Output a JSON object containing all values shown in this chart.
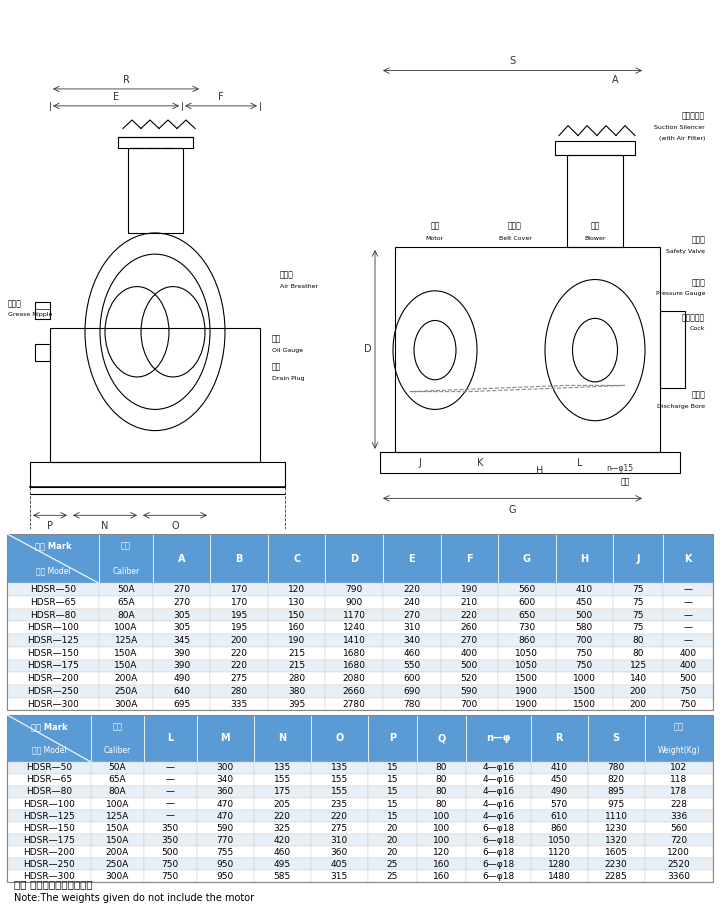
{
  "table1_headers": [
    "记号 Mark\n型式 Model",
    "口径\nCaliber",
    "A",
    "B",
    "C",
    "D",
    "E",
    "F",
    "G",
    "H",
    "J",
    "K"
  ],
  "table1_rows": [
    [
      "HDSR—50",
      "50A",
      "270",
      "170",
      "120",
      "790",
      "220",
      "190",
      "560",
      "410",
      "75",
      "—"
    ],
    [
      "HDSR—65",
      "65A",
      "270",
      "170",
      "130",
      "900",
      "240",
      "210",
      "600",
      "450",
      "75",
      "—"
    ],
    [
      "HDSR—80",
      "80A",
      "305",
      "195",
      "150",
      "1170",
      "270",
      "220",
      "650",
      "500",
      "75",
      "—"
    ],
    [
      "HDSR—100",
      "100A",
      "305",
      "195",
      "160",
      "1240",
      "310",
      "260",
      "730",
      "580",
      "75",
      "—"
    ],
    [
      "HDSR—125",
      "125A",
      "345",
      "200",
      "190",
      "1410",
      "340",
      "270",
      "860",
      "700",
      "80",
      "—"
    ],
    [
      "HDSR—150",
      "150A",
      "390",
      "220",
      "215",
      "1680",
      "460",
      "400",
      "1050",
      "750",
      "80",
      "400"
    ],
    [
      "HDSR—175",
      "150A",
      "390",
      "220",
      "215",
      "1680",
      "550",
      "500",
      "1050",
      "750",
      "125",
      "400"
    ],
    [
      "HDSR—200",
      "200A",
      "490",
      "275",
      "280",
      "2080",
      "600",
      "520",
      "1500",
      "1000",
      "140",
      "500"
    ],
    [
      "HDSR—250",
      "250A",
      "640",
      "280",
      "380",
      "2660",
      "690",
      "590",
      "1900",
      "1500",
      "200",
      "750"
    ],
    [
      "HDSR—300",
      "300A",
      "695",
      "335",
      "395",
      "2780",
      "780",
      "700",
      "1900",
      "1500",
      "200",
      "750"
    ]
  ],
  "table2_headers": [
    "记号 Mark\n型式 Model",
    "口径\nCaliber",
    "L",
    "M",
    "N",
    "O",
    "P",
    "Q",
    "n—φ",
    "R",
    "S",
    "重量\nWeight(Kg)"
  ],
  "table2_rows": [
    [
      "HDSR—50",
      "50A",
      "—",
      "300",
      "135",
      "135",
      "15",
      "80",
      "4—φ16",
      "410",
      "780",
      "102"
    ],
    [
      "HDSR—65",
      "65A",
      "—",
      "340",
      "155",
      "155",
      "15",
      "80",
      "4—φ16",
      "450",
      "820",
      "118"
    ],
    [
      "HDSR—80",
      "80A",
      "—",
      "360",
      "175",
      "155",
      "15",
      "80",
      "4—φ16",
      "490",
      "895",
      "178"
    ],
    [
      "HDSR—100",
      "100A",
      "—",
      "470",
      "205",
      "235",
      "15",
      "80",
      "4—φ16",
      "570",
      "975",
      "228"
    ],
    [
      "HDSR—125",
      "125A",
      "—",
      "470",
      "220",
      "220",
      "15",
      "100",
      "4—φ16",
      "610",
      "1110",
      "336"
    ],
    [
      "HDSR—150",
      "150A",
      "350",
      "590",
      "325",
      "275",
      "20",
      "100",
      "6—φ18",
      "860",
      "1230",
      "560"
    ],
    [
      "HDSR—175",
      "150A",
      "350",
      "770",
      "420",
      "310",
      "20",
      "100",
      "6—φ18",
      "1050",
      "1320",
      "720"
    ],
    [
      "HDSR—200",
      "200A",
      "500",
      "755",
      "460",
      "360",
      "20",
      "120",
      "6—φ18",
      "1120",
      "1605",
      "1200"
    ],
    [
      "HDSR—250",
      "250A",
      "750",
      "950",
      "495",
      "405",
      "25",
      "160",
      "6—φ18",
      "1280",
      "2230",
      "2520"
    ],
    [
      "HDSR—300",
      "300A",
      "750",
      "950",
      "585",
      "315",
      "25",
      "160",
      "6—φ18",
      "1480",
      "2285",
      "3360"
    ]
  ],
  "header_bg": "#5b9bd5",
  "header_text": "#ffffff",
  "alt_row_bg": "#e8f0f7",
  "white_row_bg": "#ffffff",
  "table_border": "#aaaaaa",
  "note_cn": "注： 重量中不包括电机重量",
  "note_en": "Note:The weights given do not include the motor"
}
